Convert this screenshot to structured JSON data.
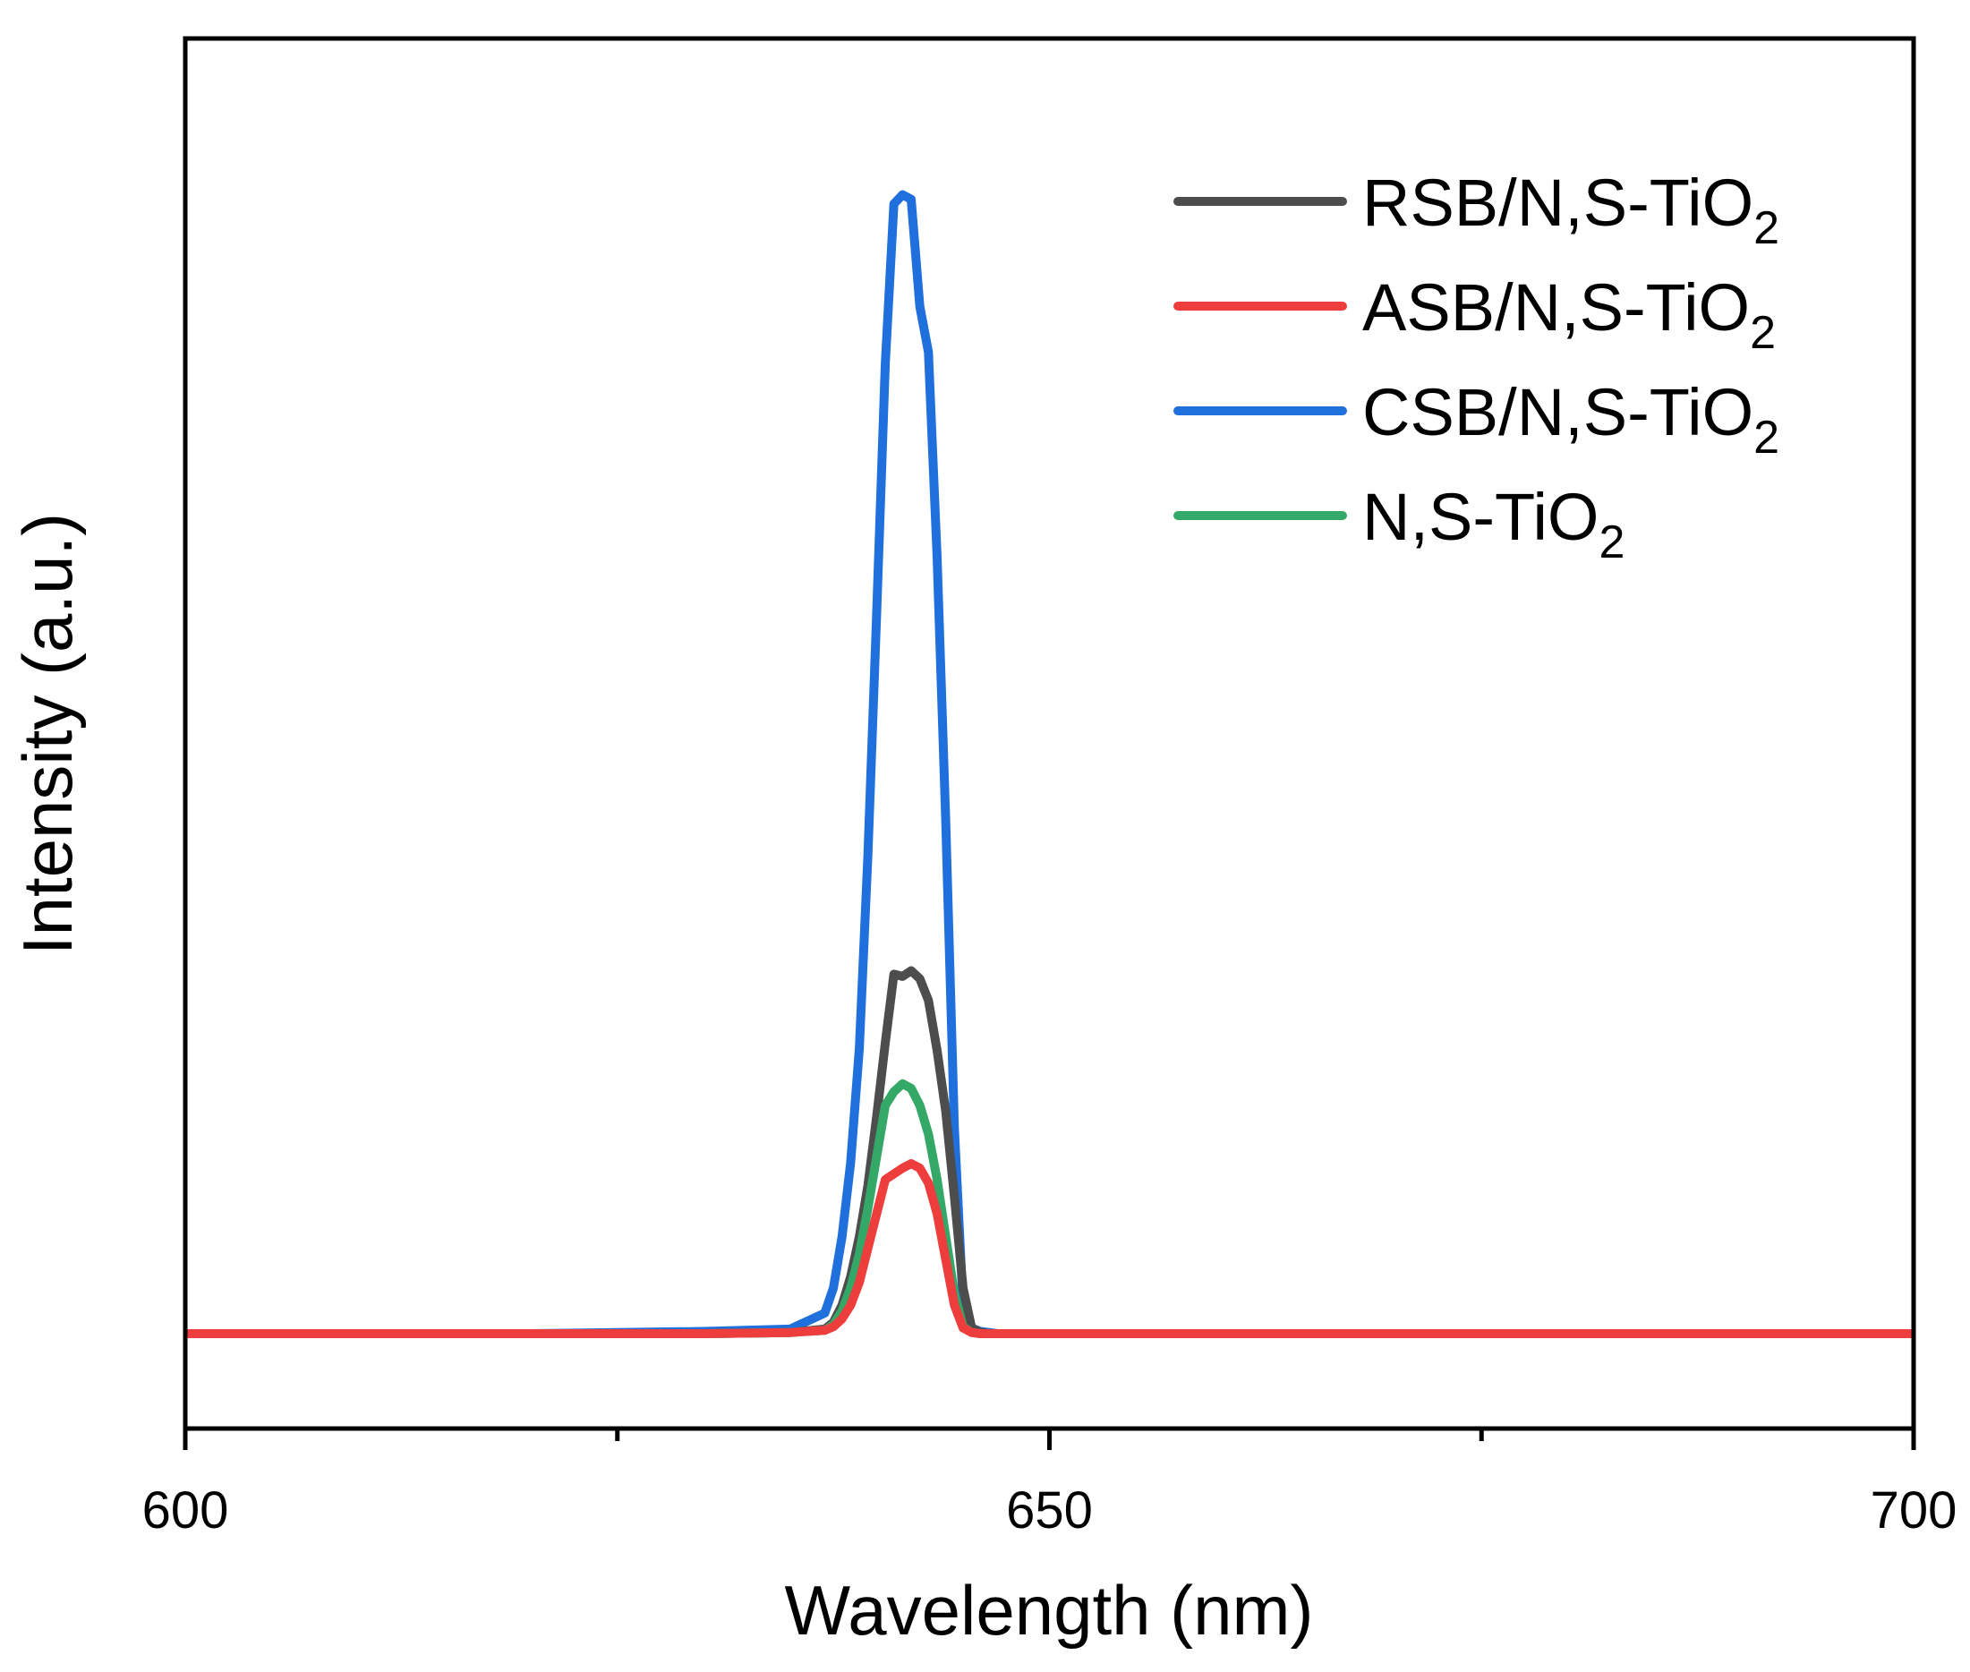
{
  "chart_data": {
    "type": "line",
    "title": "",
    "xlabel": "Wavelength (nm)",
    "ylabel": "Intensity (a.u.)",
    "xlim": [
      600,
      700
    ],
    "ylim": [
      -0.08,
      1.1
    ],
    "x_ticks": [
      600,
      650,
      700
    ],
    "x_tick_labels": [
      "600",
      "650",
      "700"
    ],
    "x_minor_ticks": [
      625,
      675
    ],
    "y_ticks_shown": false,
    "grid": false,
    "legend_position": "top-right",
    "x": [
      600,
      610,
      620,
      630,
      635,
      637,
      637.5,
      638,
      638.5,
      639,
      639.5,
      640,
      640.5,
      641,
      641.5,
      642,
      642.5,
      643,
      643.5,
      644,
      644.5,
      645,
      645.5,
      646,
      646.5,
      647,
      647.5,
      648,
      648.5,
      649,
      649.5,
      650,
      660,
      670,
      680,
      690,
      700
    ],
    "series": [
      {
        "name": "RSB/N,S-TiO2",
        "label_main": "RSB/N,S-TiO",
        "label_sub": "2",
        "color": "#4d4d4d",
        "values": [
          0,
          0,
          0,
          0,
          0.001,
          0.004,
          0.01,
          0.025,
          0.05,
          0.085,
          0.13,
          0.19,
          0.255,
          0.315,
          0.313,
          0.318,
          0.311,
          0.292,
          0.248,
          0.195,
          0.12,
          0.04,
          0.005,
          0.001,
          0,
          0,
          0,
          0,
          0,
          0,
          0,
          0,
          0,
          0,
          0,
          0,
          0
        ]
      },
      {
        "name": "ASB/N,S-TiO2",
        "label_main": "ASB/N,S-TiO",
        "label_sub": "2",
        "color": "#ee3d3d",
        "values": [
          0,
          0,
          0,
          0,
          0.001,
          0.003,
          0.006,
          0.013,
          0.025,
          0.045,
          0.075,
          0.105,
          0.135,
          0.14,
          0.145,
          0.149,
          0.145,
          0.132,
          0.105,
          0.065,
          0.025,
          0.005,
          0.001,
          0,
          0,
          0,
          0,
          0,
          0,
          0,
          0,
          0,
          0,
          0,
          0,
          0,
          0
        ]
      },
      {
        "name": "CSB/N,S-TiO2",
        "label_main": "CSB/N,S-TiO",
        "label_sub": "2",
        "color": "#1f6fdc",
        "values": [
          0,
          0,
          0,
          0.002,
          0.004,
          0.018,
          0.04,
          0.085,
          0.15,
          0.25,
          0.42,
          0.63,
          0.85,
          0.99,
          0.998,
          0.994,
          0.9,
          0.86,
          0.68,
          0.45,
          0.18,
          0.025,
          0.005,
          0.002,
          0.001,
          0,
          0,
          0,
          0,
          0,
          0,
          0,
          0,
          0,
          0,
          0,
          0
        ]
      },
      {
        "name": "N,S-TiO2",
        "label_main": "N,S-TiO",
        "label_sub": "2",
        "color": "#33a867",
        "values": [
          0,
          0,
          0,
          0,
          0.001,
          0.003,
          0.008,
          0.02,
          0.04,
          0.07,
          0.11,
          0.155,
          0.2,
          0.212,
          0.219,
          0.215,
          0.2,
          0.175,
          0.135,
          0.085,
          0.035,
          0.006,
          0.001,
          0,
          0,
          0,
          0,
          0,
          0,
          0,
          0,
          0,
          0,
          0,
          0,
          0,
          0
        ]
      }
    ]
  }
}
